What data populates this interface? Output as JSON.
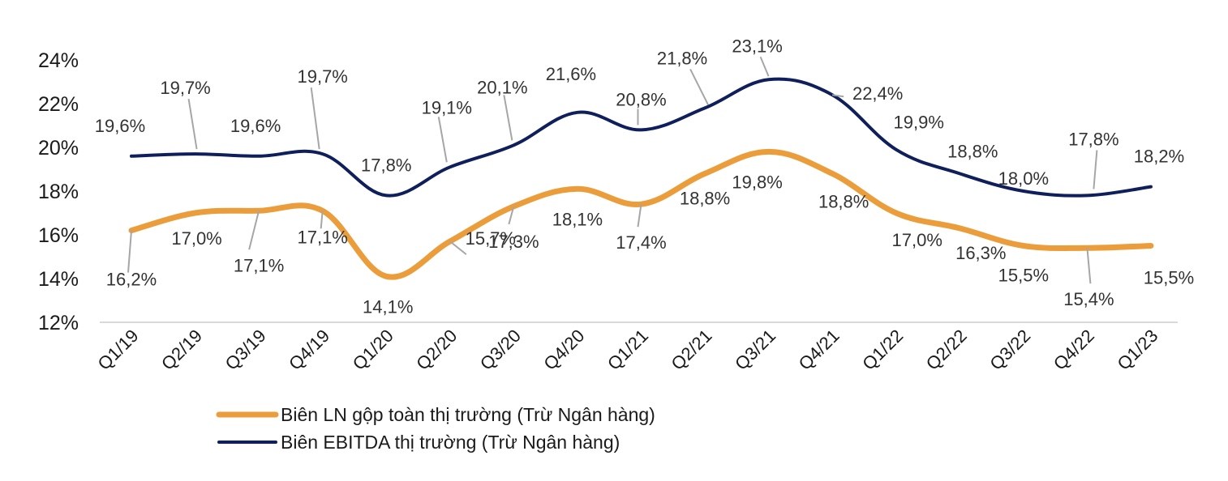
{
  "chart_data": {
    "type": "line",
    "categories": [
      "Q1/19",
      "Q2/19",
      "Q3/19",
      "Q4/19",
      "Q1/20",
      "Q2/20",
      "Q3/20",
      "Q4/20",
      "Q1/21",
      "Q2/21",
      "Q3/21",
      "Q4/21",
      "Q1/22",
      "Q2/22",
      "Q3/22",
      "Q4/22",
      "Q1/23"
    ],
    "ylim": [
      12,
      24
    ],
    "yticks": [
      "12%",
      "14%",
      "16%",
      "18%",
      "20%",
      "22%",
      "24%"
    ],
    "series": [
      {
        "name": "Biên EBITDA thị trường (Trừ Ngân hàng)",
        "color": "#0f1f5c",
        "values": [
          19.6,
          19.7,
          19.6,
          19.7,
          17.8,
          19.1,
          20.1,
          21.6,
          20.8,
          21.8,
          23.1,
          22.4,
          19.9,
          18.8,
          18.0,
          17.8,
          18.2
        ],
        "labels": [
          "19,6%",
          "19,7%",
          "19,6%",
          "19,7%",
          "17,8%",
          "19,1%",
          "20,1%",
          "21,6%",
          "20,8%",
          "21,8%",
          "23,1%",
          "22,4%",
          "19,9%",
          "18,8%",
          "18,0%",
          "17,8%",
          "18,2%"
        ]
      },
      {
        "name": "Biên LN gộp toàn thị trường (Trừ Ngân hàng)",
        "color": "#ec9d3b",
        "values": [
          16.2,
          17.0,
          17.1,
          17.1,
          14.1,
          15.7,
          17.3,
          18.1,
          17.4,
          18.8,
          19.8,
          18.8,
          17.0,
          16.3,
          15.5,
          15.4,
          15.5
        ],
        "labels": [
          "16,2%",
          "17,0%",
          "17,1%",
          "17,1%",
          "14,1%",
          "15,7%",
          "17,3%",
          "18,1%",
          "17,4%",
          "18,8%",
          "19,8%",
          "18,8%",
          "17,0%",
          "16,3%",
          "15,5%",
          "15,4%",
          "15,5%"
        ]
      }
    ],
    "legend": [
      {
        "label": "Biên LN gộp toàn thị trường (Trừ Ngân hàng)",
        "color": "#ec9d3b"
      },
      {
        "label": "Biên EBITDA thị trường (Trừ Ngân hàng)",
        "color": "#0f1f5c"
      }
    ]
  }
}
